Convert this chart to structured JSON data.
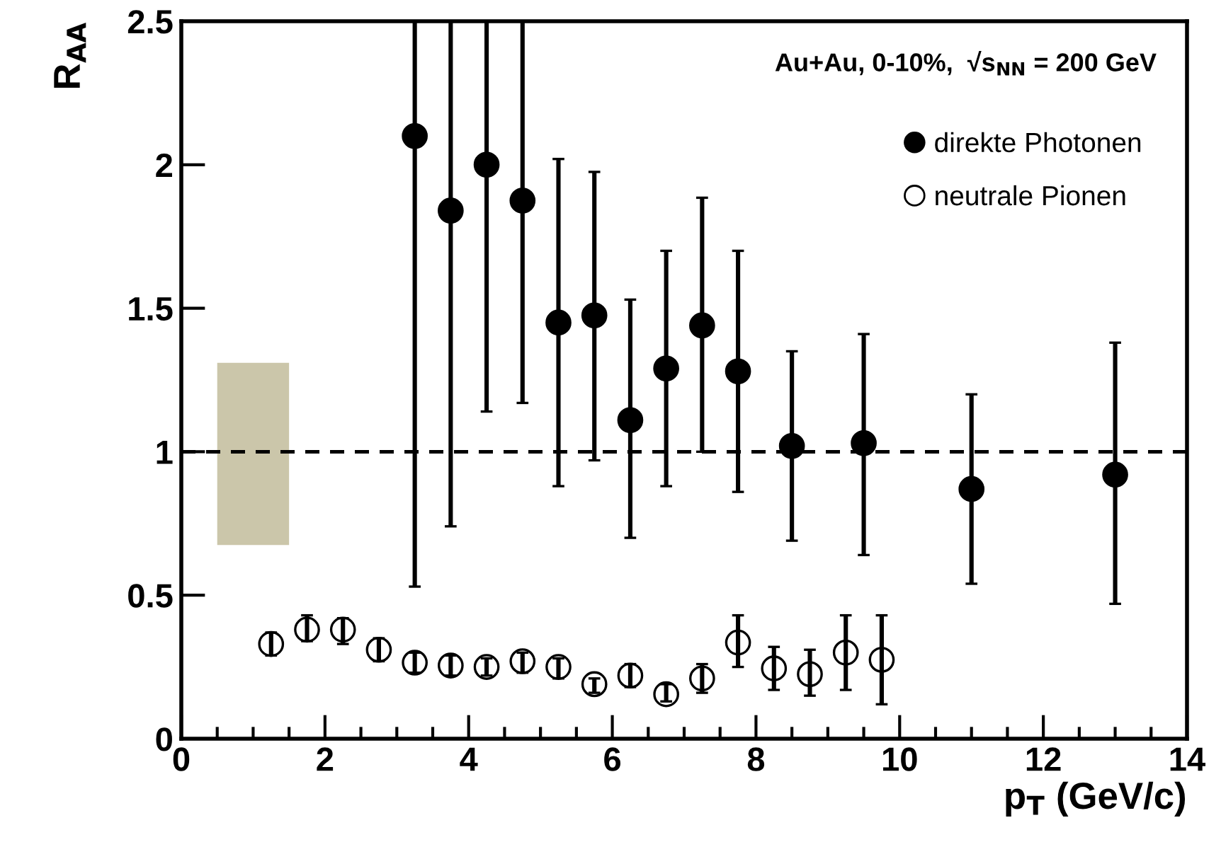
{
  "chart_data": {
    "type": "scatter",
    "xlabel": "p$_{T}$ (GeV/c)",
    "ylabel": "R$_{AA}$",
    "annotations": [
      "Au+Au, 0-10%,  √s$_{NN}$ = 200 GeV"
    ],
    "xlim": [
      0,
      14
    ],
    "xticks": [
      0,
      2,
      4,
      6,
      8,
      10,
      12,
      14
    ],
    "ylim": [
      0,
      2.5
    ],
    "yticks": [
      0,
      0.5,
      1,
      1.5,
      2,
      2.5
    ],
    "grid": false,
    "legend": "top right",
    "marker": "circle",
    "ref_lines": [
      {
        "axis": "y",
        "value": 1,
        "line_style": "dashed",
        "color": "#000000"
      }
    ],
    "series": [
      {
        "type": "bar",
        "color": "#cbc6aa",
        "x": [
          1
        ],
        "base": [
          0.675
        ],
        "values": [
          0.635
        ]
      },
      {
        "name": "direkte Photonen",
        "color": "#000000",
        "x": [
          3.25,
          3.75,
          4.25,
          4.75,
          5.25,
          5.75,
          6.25,
          6.75,
          7.25,
          7.75,
          8.5,
          9.5,
          11,
          13
        ],
        "values": [
          2.1,
          1.84,
          2.0,
          1.875,
          1.45,
          1.475,
          1.11,
          1.29,
          1.44,
          1.28,
          1.02,
          1.03,
          0.87,
          0.92
        ],
        "errors": [
          [
            0.53,
            2.5
          ],
          [
            0.74,
            2.5
          ],
          [
            1.14,
            2.5
          ],
          [
            1.17,
            2.5
          ],
          [
            0.88,
            2.02
          ],
          [
            0.97,
            1.975
          ],
          [
            0.7,
            1.53
          ],
          [
            0.88,
            1.7
          ],
          [
            1.0,
            1.885
          ],
          [
            0.86,
            1.7
          ],
          [
            0.69,
            1.35
          ],
          [
            0.64,
            1.41
          ],
          [
            0.54,
            1.2
          ],
          [
            0.47,
            1.38
          ]
        ]
      },
      {
        "name": "neutrale Pionen",
        "color": "#000000",
        "x": [
          1.25,
          1.75,
          2.25,
          2.75,
          3.25,
          3.75,
          4.25,
          4.75,
          5.25,
          5.75,
          6.25,
          6.75,
          7.25,
          7.75,
          8.25,
          8.75,
          9.25,
          9.75
        ],
        "values": [
          0.33,
          0.38,
          0.38,
          0.31,
          0.265,
          0.255,
          0.25,
          0.27,
          0.25,
          0.19,
          0.22,
          0.155,
          0.21,
          0.335,
          0.245,
          0.225,
          0.3,
          0.275
        ],
        "errors": [
          [
            0.29,
            0.37
          ],
          [
            0.34,
            0.43
          ],
          [
            0.33,
            0.42
          ],
          [
            0.27,
            0.35
          ],
          [
            0.23,
            0.3
          ],
          [
            0.22,
            0.29
          ],
          [
            0.22,
            0.28
          ],
          [
            0.23,
            0.3
          ],
          [
            0.21,
            0.28
          ],
          [
            0.16,
            0.21
          ],
          [
            0.18,
            0.26
          ],
          [
            0.13,
            0.19
          ],
          [
            0.16,
            0.26
          ],
          [
            0.25,
            0.43
          ],
          [
            0.17,
            0.32
          ],
          [
            0.15,
            0.31
          ],
          [
            0.17,
            0.43
          ],
          [
            0.12,
            0.43
          ]
        ]
      }
    ]
  }
}
